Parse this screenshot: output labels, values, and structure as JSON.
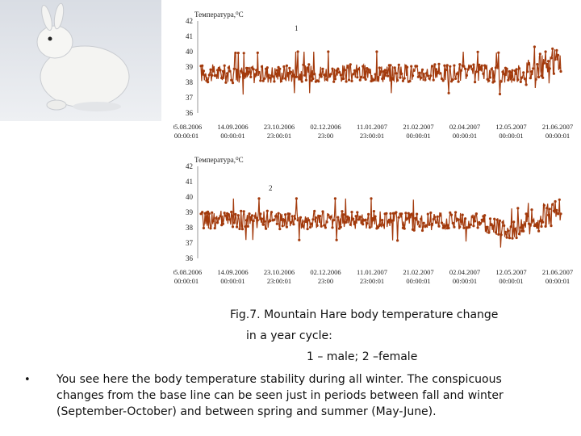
{
  "charts": [
    {
      "y_axis_title": "Температура,⁰С",
      "series_tag": "1",
      "y_ticks": [
        "42",
        "41",
        "40",
        "39",
        "38",
        "37",
        "36"
      ],
      "x_ticks": [
        {
          "date": "05.08.2006",
          "time": "00:00:01"
        },
        {
          "date": "14.09.2006",
          "time": "00:00:01"
        },
        {
          "date": "23.10.2006",
          "time": "23:00:01"
        },
        {
          "date": "02.12.2006",
          "time": "23:00"
        },
        {
          "date": "11.01.2007",
          "time": "23:00:01"
        },
        {
          "date": "21.02.2007",
          "time": "00:00:01"
        },
        {
          "date": "02.04.2007",
          "time": "00:00:01"
        },
        {
          "date": "12.05.2007",
          "time": "00:00:01"
        },
        {
          "date": "21.06.2007",
          "time": "00:00:01"
        }
      ]
    },
    {
      "y_axis_title": "Температура,⁰С",
      "series_tag": "2",
      "y_ticks": [
        "42",
        "41",
        "40",
        "39",
        "38",
        "37",
        "36"
      ],
      "x_ticks": [
        {
          "date": "05.08.2006",
          "time": "00:00:01"
        },
        {
          "date": "14.09.2006",
          "time": "00:00:01"
        },
        {
          "date": "23.10.2006",
          "time": "23:00:01"
        },
        {
          "date": "02.12.2006",
          "time": "23:00"
        },
        {
          "date": "11.01.2007",
          "time": "23:00:01"
        },
        {
          "date": "21.02.2007",
          "time": "00:00:01"
        },
        {
          "date": "02.04.2007",
          "time": "00:00:01"
        },
        {
          "date": "12.05.2007",
          "time": "00:00:01"
        },
        {
          "date": "21.06.2007",
          "time": "00:00:01"
        }
      ]
    }
  ],
  "chart_data": [
    {
      "type": "line",
      "ylabel": "Температура,⁰С",
      "ylim": [
        36,
        42
      ],
      "grid": false,
      "color": "#a33a0c",
      "series": [
        {
          "name": "1",
          "x": [
            "05.08.2006",
            "14.09.2006",
            "23.10.2006",
            "02.12.2006",
            "11.01.2007",
            "21.02.2007",
            "02.04.2007",
            "12.05.2007",
            "21.06.2007"
          ],
          "values": [
            38.6,
            38.5,
            38.6,
            38.6,
            38.6,
            38.6,
            38.6,
            38.5,
            39.5
          ]
        }
      ]
    },
    {
      "type": "line",
      "ylabel": "Температура,⁰С",
      "ylim": [
        36,
        42
      ],
      "grid": false,
      "color": "#a33a0c",
      "series": [
        {
          "name": "2",
          "x": [
            "05.08.2006",
            "14.09.2006",
            "23.10.2006",
            "02.12.2006",
            "11.01.2007",
            "21.02.2007",
            "02.04.2007",
            "12.05.2007",
            "21.06.2007"
          ],
          "values": [
            38.5,
            38.5,
            38.5,
            38.5,
            38.5,
            38.4,
            38.4,
            37.8,
            39.3
          ]
        }
      ]
    }
  ],
  "caption": {
    "line1": "Fig.7. Mountain Hare body temperature change",
    "line2": "in a year cycle:",
    "line3": "1 – male;  2 –female"
  },
  "bullet": {
    "marker": "•",
    "text": "You see here the body temperature stability during all winter. The conspicuous changes from the base line can be seen just in periods between fall and winter (September-October) and between spring and summer (May-June)."
  },
  "photo": {
    "subject": "white-hare-on-snow-image"
  }
}
